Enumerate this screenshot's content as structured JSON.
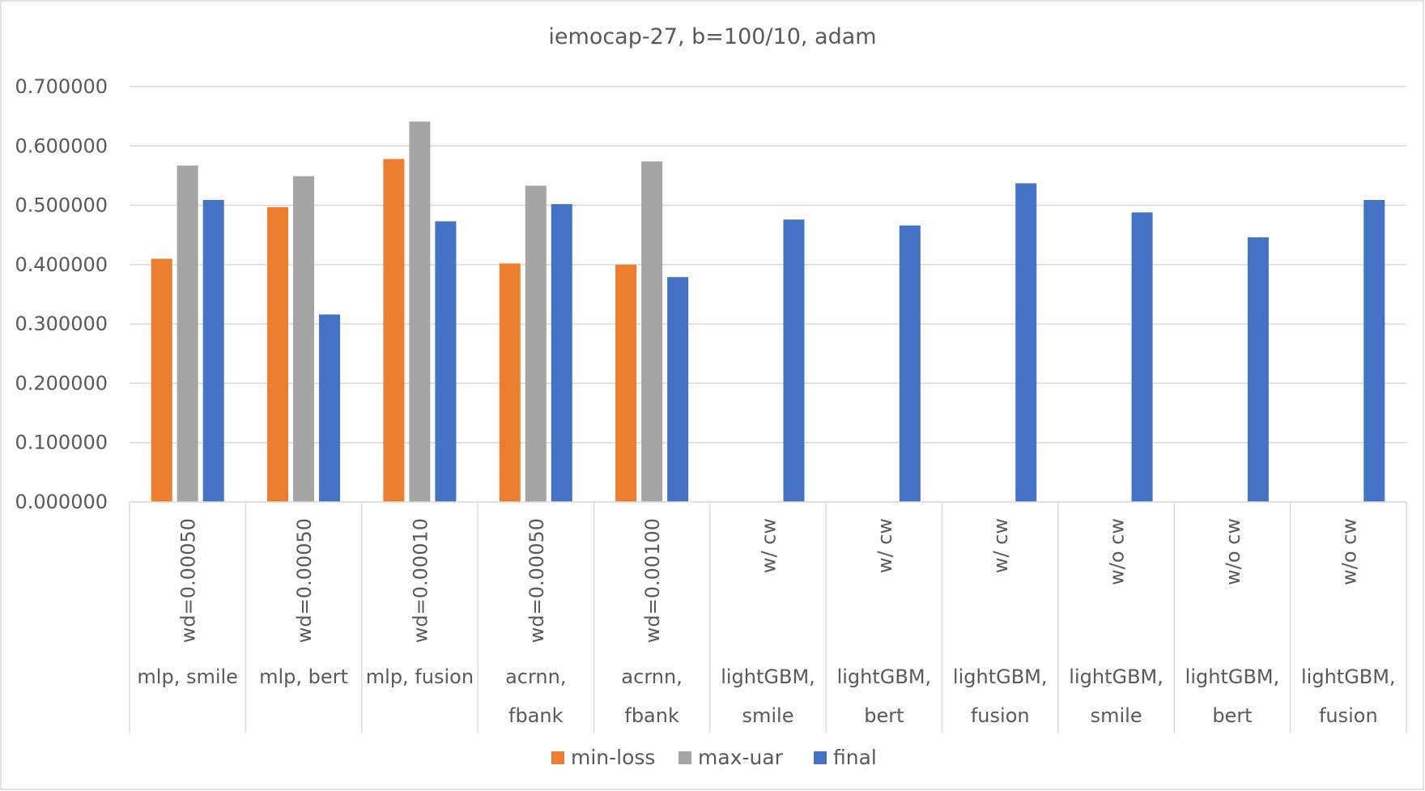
{
  "chart_data": {
    "type": "bar",
    "title": "iemocap-27, b=100/10, adam",
    "xlabel": "",
    "ylabel": "",
    "ylim": [
      0,
      0.7
    ],
    "yticks": [
      "0.000000",
      "0.100000",
      "0.200000",
      "0.300000",
      "0.400000",
      "0.500000",
      "0.600000",
      "0.700000"
    ],
    "grid": true,
    "legend_position": "bottom",
    "categories": [
      {
        "group": [
          "mlp, smile"
        ],
        "sub": "wd=0.00050"
      },
      {
        "group": [
          "mlp, bert"
        ],
        "sub": "wd=0.00050"
      },
      {
        "group": [
          "mlp, fusion"
        ],
        "sub": "wd=0.00010"
      },
      {
        "group": [
          "acrnn,",
          "fbank"
        ],
        "sub": "wd=0.00050"
      },
      {
        "group": [
          "acrnn,",
          "fbank"
        ],
        "sub": "wd=0.00100"
      },
      {
        "group": [
          "lightGBM,",
          "smile"
        ],
        "sub": "w/ cw"
      },
      {
        "group": [
          "lightGBM,",
          "bert"
        ],
        "sub": "w/ cw"
      },
      {
        "group": [
          "lightGBM,",
          "fusion"
        ],
        "sub": "w/ cw"
      },
      {
        "group": [
          "lightGBM,",
          "smile"
        ],
        "sub": "w/o cw"
      },
      {
        "group": [
          "lightGBM,",
          "bert"
        ],
        "sub": "w/o cw"
      },
      {
        "group": [
          "lightGBM,",
          "fusion"
        ],
        "sub": "w/o cw"
      }
    ],
    "series": [
      {
        "name": "min-loss",
        "color": "#ED7D31",
        "values": [
          0.41,
          0.497,
          0.578,
          0.402,
          0.4,
          null,
          null,
          null,
          null,
          null,
          null
        ]
      },
      {
        "name": "max-uar",
        "color": "#A5A5A5",
        "values": [
          0.567,
          0.549,
          0.641,
          0.533,
          0.574,
          null,
          null,
          null,
          null,
          null,
          null
        ]
      },
      {
        "name": "final",
        "color": "#4472C4",
        "values": [
          0.509,
          0.316,
          0.473,
          0.502,
          0.379,
          0.476,
          0.466,
          0.537,
          0.488,
          0.446,
          0.509
        ]
      }
    ]
  }
}
